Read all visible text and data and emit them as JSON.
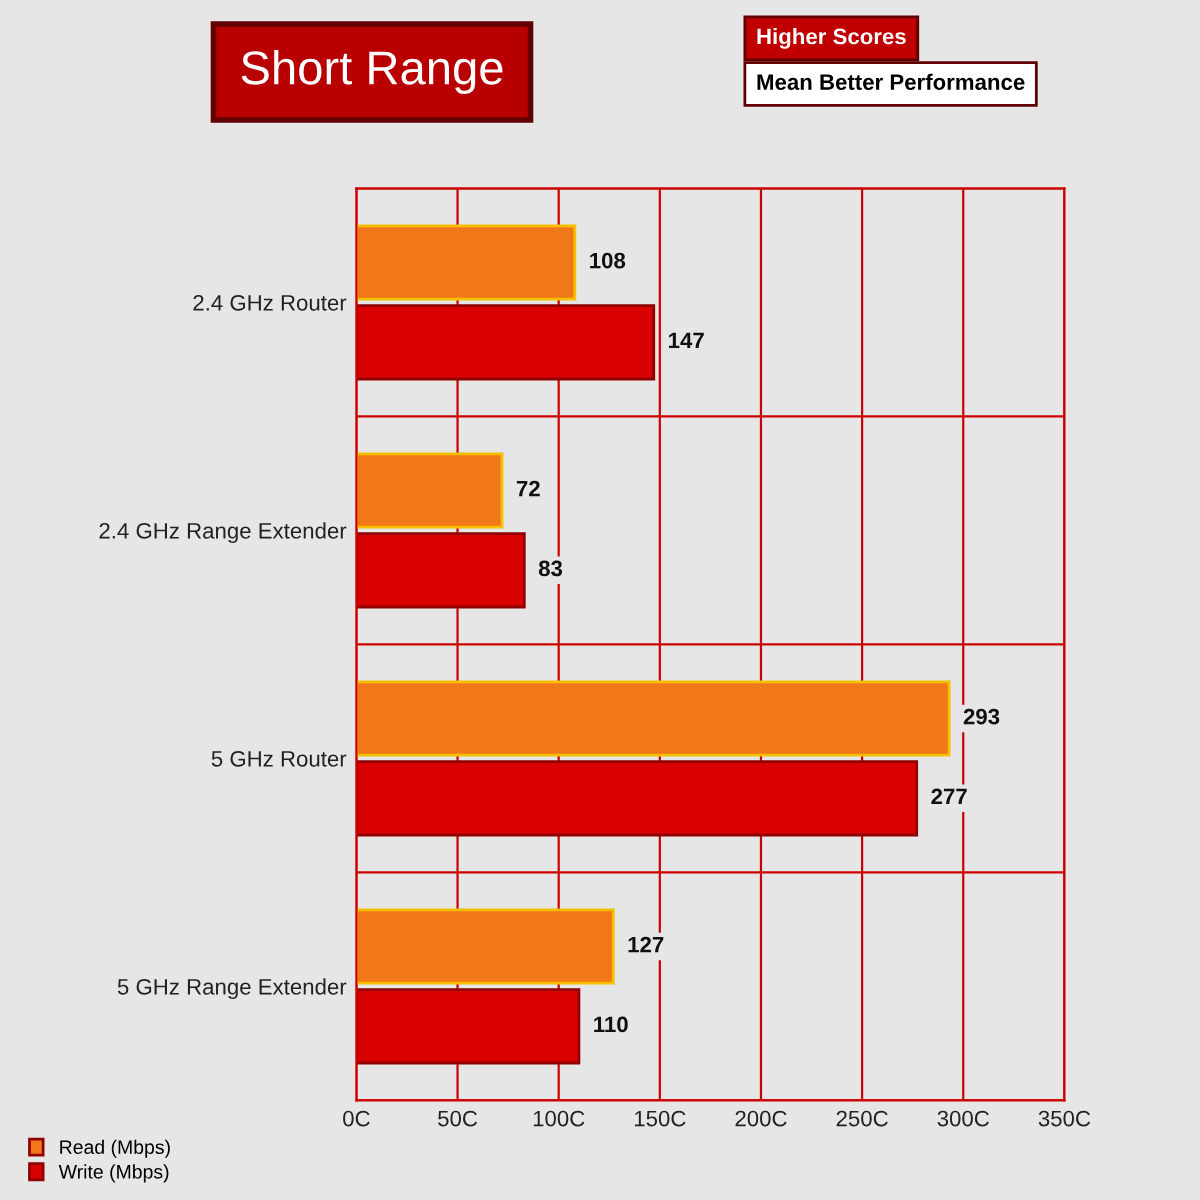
{
  "chart_data": {
    "type": "bar",
    "orientation": "horizontal",
    "title": "Short Range",
    "annotations": [
      "Higher Scores",
      "Mean Better Performance"
    ],
    "categories": [
      "2.4 GHz Router",
      "2.4 GHz Range Extender",
      "5 GHz Router",
      "5 GHz Range Extender"
    ],
    "series": [
      {
        "name": "Read (Mbps)",
        "color": "#f07818",
        "values": [
          108,
          72,
          293,
          127
        ]
      },
      {
        "name": "Write (Mbps)",
        "color": "#d80000",
        "values": [
          147,
          83,
          277,
          110
        ]
      }
    ],
    "xlim": [
      0,
      350
    ],
    "xticks": [
      {
        "value": 0,
        "label": "0C"
      },
      {
        "value": 50,
        "label": "50C"
      },
      {
        "value": 100,
        "label": "100C"
      },
      {
        "value": 150,
        "label": "150C"
      },
      {
        "value": 200,
        "label": "200C"
      },
      {
        "value": 250,
        "label": "250C"
      },
      {
        "value": 300,
        "label": "300C"
      },
      {
        "value": 350,
        "label": "350C"
      }
    ],
    "grid": "x",
    "data_labels": true,
    "legend": "bottom left"
  }
}
